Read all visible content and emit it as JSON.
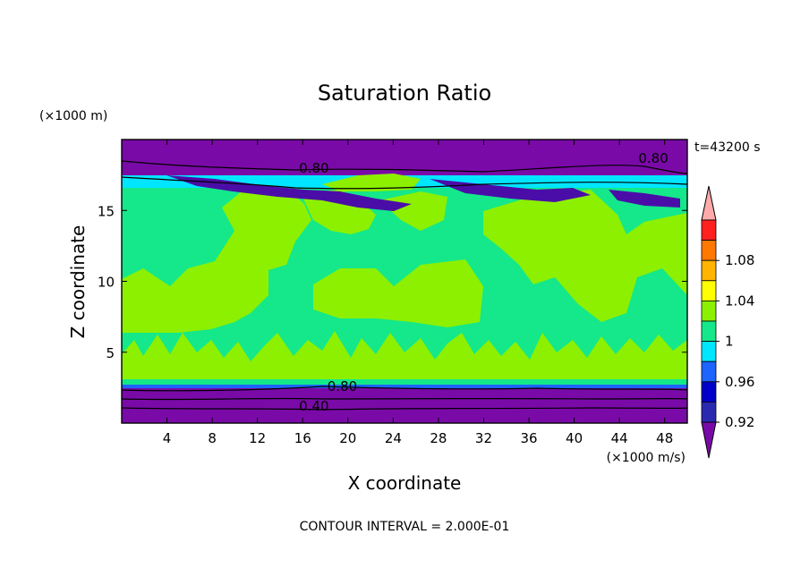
{
  "chart_data": {
    "type": "contour",
    "title": "Saturation Ratio",
    "xlabel": "X coordinate",
    "ylabel": "Z coordinate",
    "x_unit": "(×1000 m/s)",
    "y_unit": "(×1000 m)",
    "time_label": "t=43200 s",
    "footer": "CONTOUR INTERVAL = 2.000E-01",
    "xlim": [
      0,
      50
    ],
    "ylim": [
      0,
      20
    ],
    "x_ticks": [
      4,
      8,
      12,
      16,
      20,
      24,
      28,
      32,
      36,
      40,
      44,
      48
    ],
    "y_ticks": [
      5,
      10,
      15
    ],
    "contour_labels": [
      {
        "text": "0.80",
        "x": 17,
        "y": 17.8
      },
      {
        "text": "0.80",
        "x": 47,
        "y": 18.5
      },
      {
        "text": "0.80",
        "x": 19.5,
        "y": 2.4
      },
      {
        "text": "0.40",
        "x": 17,
        "y": 1.0
      }
    ],
    "colorbar": {
      "levels": [
        0.92,
        0.94,
        0.96,
        0.98,
        1.0,
        1.02,
        1.04,
        1.06,
        1.08,
        1.1
      ],
      "tick_labels": [
        "0.92",
        "0.96",
        "1",
        "1.04",
        "1.08"
      ],
      "colors": [
        "#4b0da8",
        "#2a2ab0",
        "#0000c8",
        "#1e64ff",
        "#00e6ff",
        "#14e88a",
        "#8cf000",
        "#ffff00",
        "#ffb400",
        "#ff7800",
        "#ff2020",
        "#ffa0a0"
      ],
      "under_color": "#7a0aa8",
      "over_color": "#ffaaaa"
    }
  }
}
